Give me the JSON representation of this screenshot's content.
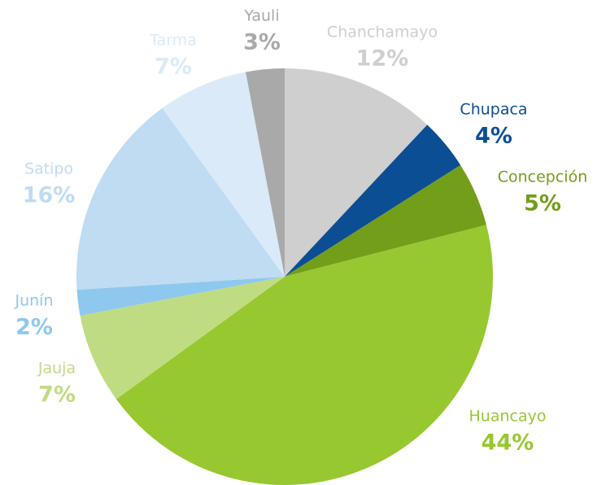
{
  "chart_data": {
    "type": "pie",
    "categories": [
      "Chanchamayo",
      "Chupaca",
      "Concepción",
      "Huancayo",
      "Jauja",
      "Junín",
      "Satipo",
      "Tarma",
      "Yauli"
    ],
    "values": [
      12,
      4,
      5,
      44,
      7,
      2,
      16,
      7,
      3
    ],
    "value_labels": [
      "12%",
      "4%",
      "5%",
      "44%",
      "7%",
      "2%",
      "16%",
      "7%",
      "3%"
    ],
    "colors": [
      "#cfcfcf",
      "#0c4e94",
      "#739e1a",
      "#97c830",
      "#c0dc82",
      "#8fc8ee",
      "#bfdcf3",
      "#daeaf8",
      "#a9a9a9"
    ]
  }
}
